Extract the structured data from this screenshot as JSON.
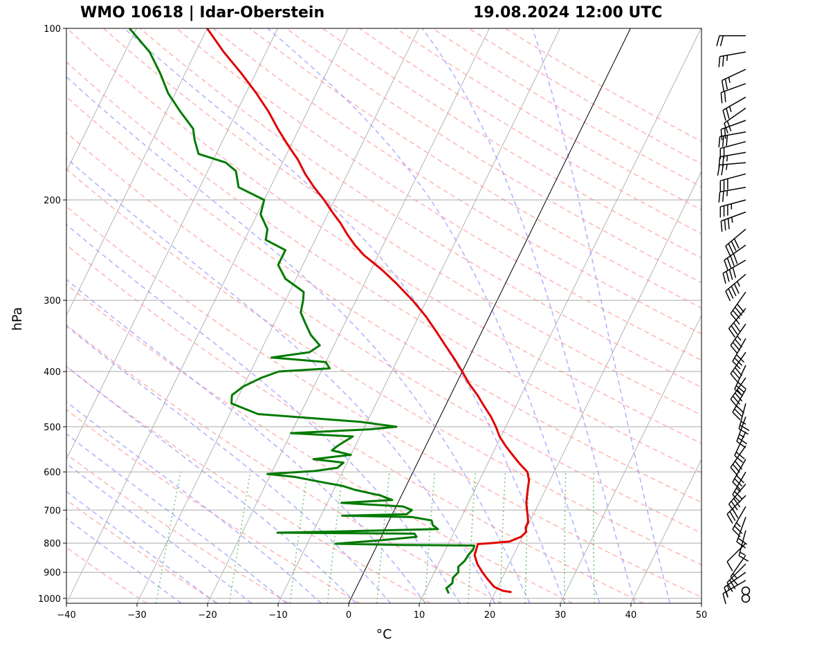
{
  "chart_data": {
    "type": "skewt",
    "title_left": "WMO 10618 | Idar-Oberstein",
    "title_right": "19.08.2024 12:00 UTC",
    "xlabel": "°C",
    "ylabel": "hPa",
    "xlim": [
      -40,
      50
    ],
    "ylim": [
      1020,
      100
    ],
    "xticks": [
      -40,
      -30,
      -20,
      -10,
      0,
      10,
      20,
      30,
      40,
      50
    ],
    "xtick_labels": [
      "−40",
      "−30",
      "−20",
      "−10",
      "0",
      "10",
      "20",
      "30",
      "40",
      "50"
    ],
    "yticks": [
      1000,
      900,
      800,
      700,
      600,
      500,
      400,
      300,
      200,
      100
    ],
    "ytick_labels": [
      "1000",
      "900",
      "800",
      "700",
      "600",
      "500",
      "400",
      "300",
      "200",
      "100"
    ],
    "colors": {
      "temperature": "#e00000",
      "dewpoint": "#007a00",
      "dry_adiabat": "#ff9999",
      "moist_adiabat": "#9999ff",
      "mixing_ratio": "#55bb55",
      "isotherm": "#808080",
      "isobar": "#aaaaaa",
      "zero_isotherm": "#000000"
    },
    "temperature": [
      {
        "p": 975,
        "t": 22.3
      },
      {
        "p": 970,
        "t": 21.0
      },
      {
        "p": 955,
        "t": 19.5
      },
      {
        "p": 925,
        "t": 18.0
      },
      {
        "p": 900,
        "t": 16.8
      },
      {
        "p": 870,
        "t": 15.5
      },
      {
        "p": 840,
        "t": 14.5
      },
      {
        "p": 803,
        "t": 14.2
      },
      {
        "p": 800,
        "t": 16.0
      },
      {
        "p": 795,
        "t": 18.5
      },
      {
        "p": 780,
        "t": 19.8
      },
      {
        "p": 765,
        "t": 20.2
      },
      {
        "p": 750,
        "t": 19.8
      },
      {
        "p": 735,
        "t": 19.8
      },
      {
        "p": 720,
        "t": 19.4
      },
      {
        "p": 700,
        "t": 18.8
      },
      {
        "p": 680,
        "t": 18.2
      },
      {
        "p": 660,
        "t": 17.8
      },
      {
        "p": 640,
        "t": 17.4
      },
      {
        "p": 620,
        "t": 17.0
      },
      {
        "p": 600,
        "t": 16.2
      },
      {
        "p": 580,
        "t": 14.5
      },
      {
        "p": 560,
        "t": 12.9
      },
      {
        "p": 540,
        "t": 11.3
      },
      {
        "p": 520,
        "t": 9.8
      },
      {
        "p": 500,
        "t": 8.6
      },
      {
        "p": 480,
        "t": 7.2
      },
      {
        "p": 460,
        "t": 5.5
      },
      {
        "p": 440,
        "t": 3.8
      },
      {
        "p": 420,
        "t": 1.8
      },
      {
        "p": 400,
        "t": 0.0
      },
      {
        "p": 380,
        "t": -2.0
      },
      {
        "p": 360,
        "t": -4.2
      },
      {
        "p": 340,
        "t": -6.5
      },
      {
        "p": 320,
        "t": -9.0
      },
      {
        "p": 300,
        "t": -12.0
      },
      {
        "p": 280,
        "t": -15.5
      },
      {
        "p": 265,
        "t": -18.5
      },
      {
        "p": 250,
        "t": -22.0
      },
      {
        "p": 240,
        "t": -24.0
      },
      {
        "p": 230,
        "t": -25.8
      },
      {
        "p": 220,
        "t": -27.5
      },
      {
        "p": 210,
        "t": -29.5
      },
      {
        "p": 200,
        "t": -31.5
      },
      {
        "p": 190,
        "t": -33.8
      },
      {
        "p": 180,
        "t": -36.0
      },
      {
        "p": 170,
        "t": -38.0
      },
      {
        "p": 160,
        "t": -40.5
      },
      {
        "p": 150,
        "t": -43.0
      },
      {
        "p": 140,
        "t": -45.5
      },
      {
        "p": 130,
        "t": -48.5
      },
      {
        "p": 120,
        "t": -52.0
      },
      {
        "p": 110,
        "t": -56.0
      },
      {
        "p": 100,
        "t": -60.0
      }
    ],
    "dewpoint": [
      {
        "p": 980,
        "t": 13.5
      },
      {
        "p": 960,
        "t": 12.8
      },
      {
        "p": 940,
        "t": 13.3
      },
      {
        "p": 920,
        "t": 13.0
      },
      {
        "p": 900,
        "t": 13.4
      },
      {
        "p": 880,
        "t": 13.0
      },
      {
        "p": 860,
        "t": 13.5
      },
      {
        "p": 840,
        "t": 13.6
      },
      {
        "p": 820,
        "t": 13.9
      },
      {
        "p": 808,
        "t": 13.8
      },
      {
        "p": 806,
        "t": 3.5
      },
      {
        "p": 802,
        "t": -6.0
      },
      {
        "p": 790,
        "t": 0.5
      },
      {
        "p": 780,
        "t": 5.0
      },
      {
        "p": 770,
        "t": 4.5
      },
      {
        "p": 767,
        "t": -15.0
      },
      {
        "p": 763,
        "t": -6.0
      },
      {
        "p": 756,
        "t": 7.5
      },
      {
        "p": 744,
        "t": 6.5
      },
      {
        "p": 730,
        "t": 6.0
      },
      {
        "p": 720,
        "t": 3.0
      },
      {
        "p": 716,
        "t": -7.0
      },
      {
        "p": 712,
        "t": 2.0
      },
      {
        "p": 700,
        "t": 2.5
      },
      {
        "p": 690,
        "t": 1.0
      },
      {
        "p": 680,
        "t": -8.0
      },
      {
        "p": 672,
        "t": -1.0
      },
      {
        "p": 660,
        "t": -3.0
      },
      {
        "p": 645,
        "t": -7.0
      },
      {
        "p": 635,
        "t": -9.0
      },
      {
        "p": 626,
        "t": -12.0
      },
      {
        "p": 612,
        "t": -16.5
      },
      {
        "p": 605,
        "t": -20.5
      },
      {
        "p": 598,
        "t": -14.0
      },
      {
        "p": 590,
        "t": -11.0
      },
      {
        "p": 578,
        "t": -10.5
      },
      {
        "p": 570,
        "t": -15.0
      },
      {
        "p": 560,
        "t": -10.0
      },
      {
        "p": 550,
        "t": -13.0
      },
      {
        "p": 540,
        "t": -12.5
      },
      {
        "p": 520,
        "t": -11.0
      },
      {
        "p": 513,
        "t": -20.0
      },
      {
        "p": 505,
        "t": -9.0
      },
      {
        "p": 500,
        "t": -5.5
      },
      {
        "p": 490,
        "t": -11.0
      },
      {
        "p": 475,
        "t": -26.0
      },
      {
        "p": 455,
        "t": -30.5
      },
      {
        "p": 440,
        "t": -31.0
      },
      {
        "p": 425,
        "t": -30.0
      },
      {
        "p": 410,
        "t": -28.0
      },
      {
        "p": 400,
        "t": -26.0
      },
      {
        "p": 395,
        "t": -19.0
      },
      {
        "p": 385,
        "t": -20.0
      },
      {
        "p": 378,
        "t": -28.0
      },
      {
        "p": 370,
        "t": -23.0
      },
      {
        "p": 360,
        "t": -22.0
      },
      {
        "p": 345,
        "t": -24.0
      },
      {
        "p": 330,
        "t": -25.5
      },
      {
        "p": 315,
        "t": -27.0
      },
      {
        "p": 300,
        "t": -27.5
      },
      {
        "p": 290,
        "t": -28.0
      },
      {
        "p": 275,
        "t": -31.5
      },
      {
        "p": 260,
        "t": -33.5
      },
      {
        "p": 245,
        "t": -33.5
      },
      {
        "p": 235,
        "t": -37.0
      },
      {
        "p": 225,
        "t": -37.5
      },
      {
        "p": 212,
        "t": -39.5
      },
      {
        "p": 200,
        "t": -40.0
      },
      {
        "p": 190,
        "t": -44.5
      },
      {
        "p": 178,
        "t": -46.0
      },
      {
        "p": 172,
        "t": -48.0
      },
      {
        "p": 166,
        "t": -52.5
      },
      {
        "p": 157,
        "t": -54.0
      },
      {
        "p": 150,
        "t": -55.0
      },
      {
        "p": 140,
        "t": -58.0
      },
      {
        "p": 130,
        "t": -61.0
      },
      {
        "p": 120,
        "t": -63.5
      },
      {
        "p": 110,
        "t": -66.5
      },
      {
        "p": 100,
        "t": -71.0
      }
    ],
    "wind_barbs": [
      {
        "p": 1000,
        "calm": true
      },
      {
        "p": 970,
        "calm": true
      },
      {
        "p": 930,
        "dir": 240,
        "kt": 15
      },
      {
        "p": 900,
        "dir": 235,
        "kt": 15
      },
      {
        "p": 870,
        "dir": 225,
        "kt": 20
      },
      {
        "p": 840,
        "dir": 215,
        "kt": 15
      },
      {
        "p": 800,
        "dir": 225,
        "kt": 10
      },
      {
        "p": 760,
        "dir": 195,
        "kt": 15
      },
      {
        "p": 720,
        "dir": 200,
        "kt": 20
      },
      {
        "p": 690,
        "dir": 210,
        "kt": 25
      },
      {
        "p": 660,
        "dir": 225,
        "kt": 30
      },
      {
        "p": 630,
        "dir": 220,
        "kt": 30
      },
      {
        "p": 600,
        "dir": 210,
        "kt": 25
      },
      {
        "p": 570,
        "dir": 210,
        "kt": 30
      },
      {
        "p": 540,
        "dir": 215,
        "kt": 30
      },
      {
        "p": 510,
        "dir": 205,
        "kt": 20
      },
      {
        "p": 480,
        "dir": 200,
        "kt": 25
      },
      {
        "p": 455,
        "dir": 195,
        "kt": 25
      },
      {
        "p": 430,
        "dir": 210,
        "kt": 30
      },
      {
        "p": 410,
        "dir": 215,
        "kt": 35
      },
      {
        "p": 390,
        "dir": 205,
        "kt": 30
      },
      {
        "p": 370,
        "dir": 215,
        "kt": 30
      },
      {
        "p": 350,
        "dir": 210,
        "kt": 30
      },
      {
        "p": 330,
        "dir": 215,
        "kt": 35
      },
      {
        "p": 310,
        "dir": 220,
        "kt": 35
      },
      {
        "p": 290,
        "dir": 215,
        "kt": 40
      },
      {
        "p": 270,
        "dir": 230,
        "kt": 45
      },
      {
        "p": 255,
        "dir": 240,
        "kt": 40
      },
      {
        "p": 240,
        "dir": 235,
        "kt": 40
      },
      {
        "p": 225,
        "dir": 230,
        "kt": 40
      },
      {
        "p": 210,
        "dir": 250,
        "kt": 35
      },
      {
        "p": 200,
        "dir": 255,
        "kt": 35
      },
      {
        "p": 190,
        "dir": 260,
        "kt": 25
      },
      {
        "p": 180,
        "dir": 255,
        "kt": 30
      },
      {
        "p": 172,
        "dir": 265,
        "kt": 25
      },
      {
        "p": 165,
        "dir": 260,
        "kt": 25
      },
      {
        "p": 158,
        "dir": 255,
        "kt": 20
      },
      {
        "p": 152,
        "dir": 260,
        "kt": 30
      },
      {
        "p": 145,
        "dir": 250,
        "kt": 20
      },
      {
        "p": 138,
        "dir": 235,
        "kt": 20
      },
      {
        "p": 132,
        "dir": 240,
        "kt": 25
      },
      {
        "p": 125,
        "dir": 250,
        "kt": 20
      },
      {
        "p": 118,
        "dir": 245,
        "kt": 25
      },
      {
        "p": 110,
        "dir": 260,
        "kt": 25
      },
      {
        "p": 103,
        "dir": 270,
        "kt": 20
      }
    ]
  }
}
